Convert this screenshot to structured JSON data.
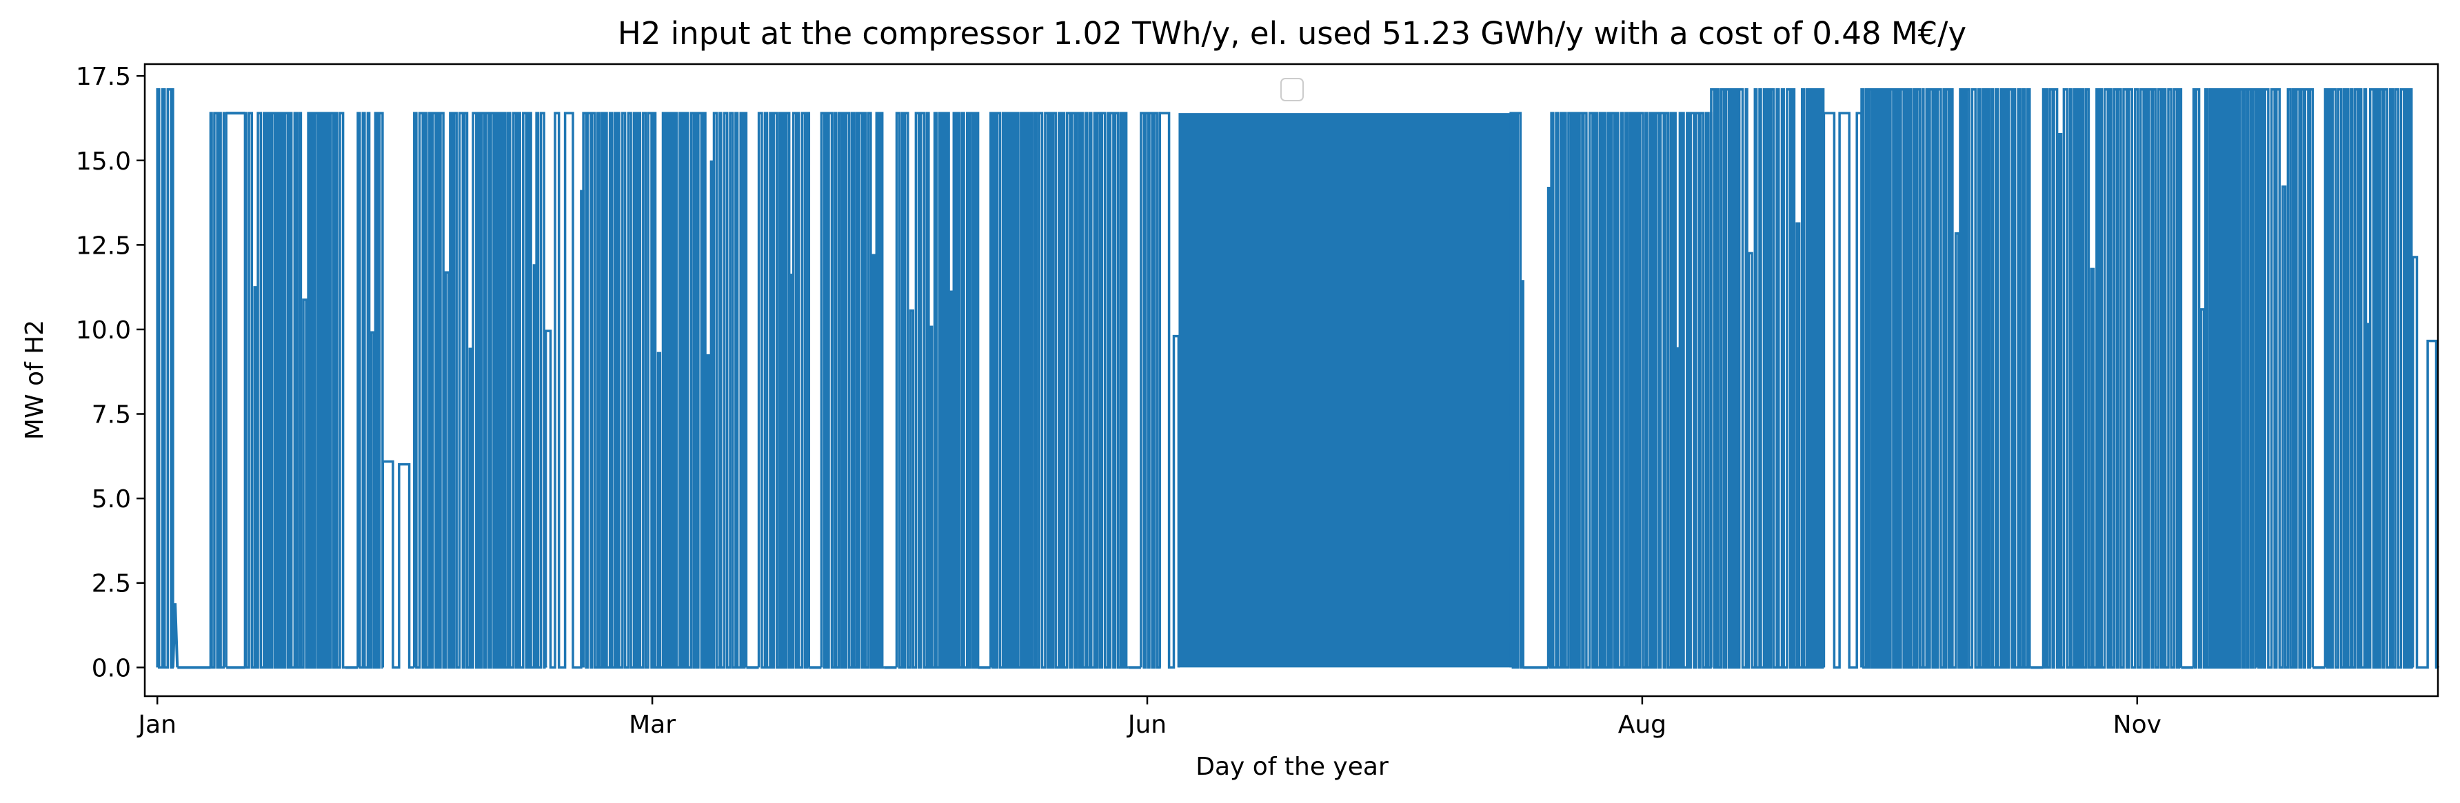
{
  "chart_data": {
    "type": "line",
    "title": "H2 input at the compressor 1.02 TWh/y, el. used 51.23 GWh/y with a cost of 0.48 M€/y",
    "xlabel": "Day of the year",
    "ylabel": "MW of H2",
    "xlim": [
      -2,
      364
    ],
    "ylim": [
      -0.85,
      17.85
    ],
    "x_ticks": [
      {
        "label": "Jan",
        "value": 0
      },
      {
        "label": "Mar",
        "value": 79
      },
      {
        "label": "Jun",
        "value": 158
      },
      {
        "label": "Aug",
        "value": 237
      },
      {
        "label": "Nov",
        "value": 316
      }
    ],
    "y_ticks": [
      {
        "label": "0.0",
        "value": 0
      },
      {
        "label": "2.5",
        "value": 2.5
      },
      {
        "label": "5.0",
        "value": 5
      },
      {
        "label": "7.5",
        "value": 7.5
      },
      {
        "label": "10.0",
        "value": 10
      },
      {
        "label": "12.5",
        "value": 12.5
      },
      {
        "label": "15.0",
        "value": 15
      },
      {
        "label": "17.5",
        "value": 17.5
      }
    ],
    "grid": false,
    "legend": {
      "placement": "upper center",
      "entries": []
    },
    "series": [
      {
        "color": "#1f77b4",
        "style": "hourly on/off operation, approximated by active/idle segments",
        "segments": [
          {
            "start": 0,
            "end": 2.5,
            "level": 17.1,
            "mode": "on"
          },
          {
            "start": 2.5,
            "end": 3.2,
            "level": 1.9,
            "mode": "spike"
          },
          {
            "start": 3.2,
            "end": 8.5,
            "level": 0,
            "mode": "off"
          },
          {
            "start": 8.5,
            "end": 11,
            "level": 16.4,
            "mode": "on"
          },
          {
            "start": 11,
            "end": 14,
            "level": 16.4,
            "mode": "flat"
          },
          {
            "start": 14,
            "end": 30,
            "level": 16.4,
            "mode": "on"
          },
          {
            "start": 30,
            "end": 32,
            "level": 0,
            "mode": "off"
          },
          {
            "start": 32,
            "end": 36,
            "level": 16.4,
            "mode": "on"
          },
          {
            "start": 36,
            "end": 41,
            "level": 0,
            "mode": "sparse"
          },
          {
            "start": 41,
            "end": 62,
            "level": 16.4,
            "mode": "on"
          },
          {
            "start": 62,
            "end": 68,
            "level": 0,
            "mode": "sparse"
          },
          {
            "start": 68,
            "end": 94,
            "level": 16.4,
            "mode": "on"
          },
          {
            "start": 94,
            "end": 96,
            "level": 0,
            "mode": "off"
          },
          {
            "start": 96,
            "end": 104,
            "level": 16.4,
            "mode": "on"
          },
          {
            "start": 104,
            "end": 106,
            "level": 0,
            "mode": "off"
          },
          {
            "start": 106,
            "end": 116,
            "level": 16.4,
            "mode": "on"
          },
          {
            "start": 116,
            "end": 118,
            "level": 0,
            "mode": "off"
          },
          {
            "start": 118,
            "end": 131,
            "level": 16.4,
            "mode": "on"
          },
          {
            "start": 131,
            "end": 133,
            "level": 0,
            "mode": "off"
          },
          {
            "start": 133,
            "end": 155,
            "level": 16.4,
            "mode": "on"
          },
          {
            "start": 155,
            "end": 157,
            "level": 0,
            "mode": "off"
          },
          {
            "start": 157,
            "end": 160,
            "level": 16.4,
            "mode": "on"
          },
          {
            "start": 160,
            "end": 163,
            "level": 0,
            "mode": "sparse"
          },
          {
            "start": 163,
            "end": 216,
            "level": 16.4,
            "mode": "solid"
          },
          {
            "start": 216,
            "end": 218,
            "level": 16.4,
            "mode": "on"
          },
          {
            "start": 218,
            "end": 222,
            "level": 0,
            "mode": "off"
          },
          {
            "start": 222,
            "end": 248,
            "level": 16.4,
            "mode": "on"
          },
          {
            "start": 248,
            "end": 266,
            "level": 17.1,
            "mode": "on"
          },
          {
            "start": 266,
            "end": 272,
            "level": 0,
            "mode": "sparse"
          },
          {
            "start": 272,
            "end": 299,
            "level": 17.1,
            "mode": "on"
          },
          {
            "start": 299,
            "end": 301,
            "level": 0,
            "mode": "off"
          },
          {
            "start": 301,
            "end": 323,
            "level": 17.1,
            "mode": "on"
          },
          {
            "start": 323,
            "end": 325,
            "level": 0,
            "mode": "off"
          },
          {
            "start": 325,
            "end": 335,
            "level": 17.1,
            "mode": "on"
          },
          {
            "start": 335,
            "end": 344,
            "level": 17.1,
            "mode": "on"
          },
          {
            "start": 344,
            "end": 346,
            "level": 0,
            "mode": "off"
          },
          {
            "start": 346,
            "end": 360,
            "level": 17.1,
            "mode": "on"
          },
          {
            "start": 360,
            "end": 364,
            "level": 0,
            "mode": "sparse"
          }
        ]
      }
    ]
  }
}
